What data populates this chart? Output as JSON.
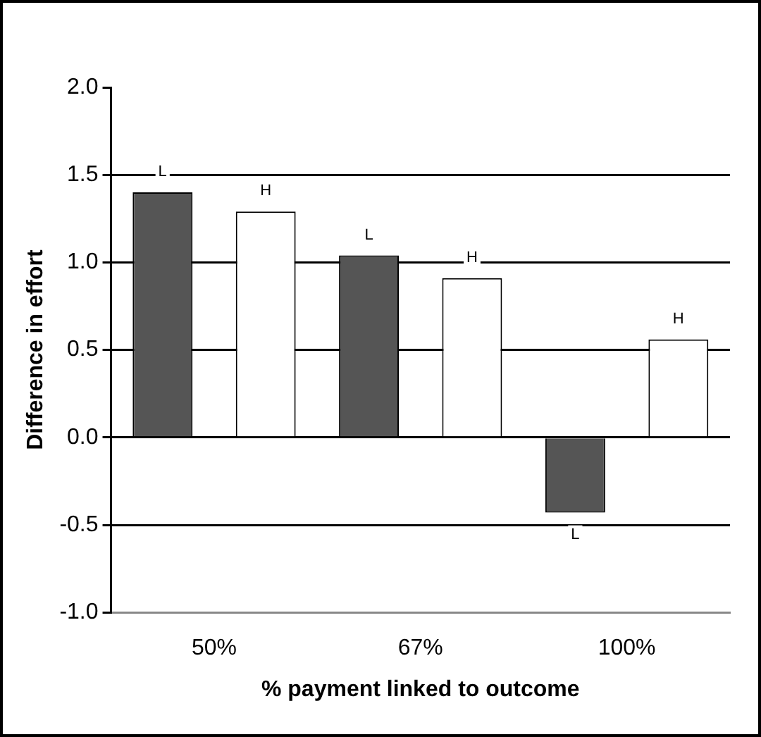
{
  "chart_data": {
    "type": "bar",
    "xlabel": "% payment linked to outcome",
    "ylabel": "Difference in effort",
    "categories": [
      "50%",
      "67%",
      "100%"
    ],
    "series": [
      {
        "color": "#555555",
        "values": [
          1.4,
          1.04,
          -0.43
        ],
        "value_labels": [
          "L",
          "L",
          "L"
        ]
      },
      {
        "color": "#ffffff",
        "values": [
          1.29,
          0.91,
          0.56
        ],
        "value_labels": [
          "H",
          "H",
          "H"
        ]
      }
    ],
    "ylim": [
      -1,
      2
    ],
    "yticks": [
      {
        "value": -1,
        "label": "-1.0"
      },
      {
        "value": -0.5,
        "label": "-0.5"
      },
      {
        "value": 0,
        "label": "0.0"
      },
      {
        "value": 0.5,
        "label": "0.5"
      },
      {
        "value": 1,
        "label": "1.0"
      },
      {
        "value": 1.5,
        "label": "1.5"
      },
      {
        "value": 2,
        "label": "2.0"
      }
    ],
    "grid": "y",
    "legend": false
  }
}
